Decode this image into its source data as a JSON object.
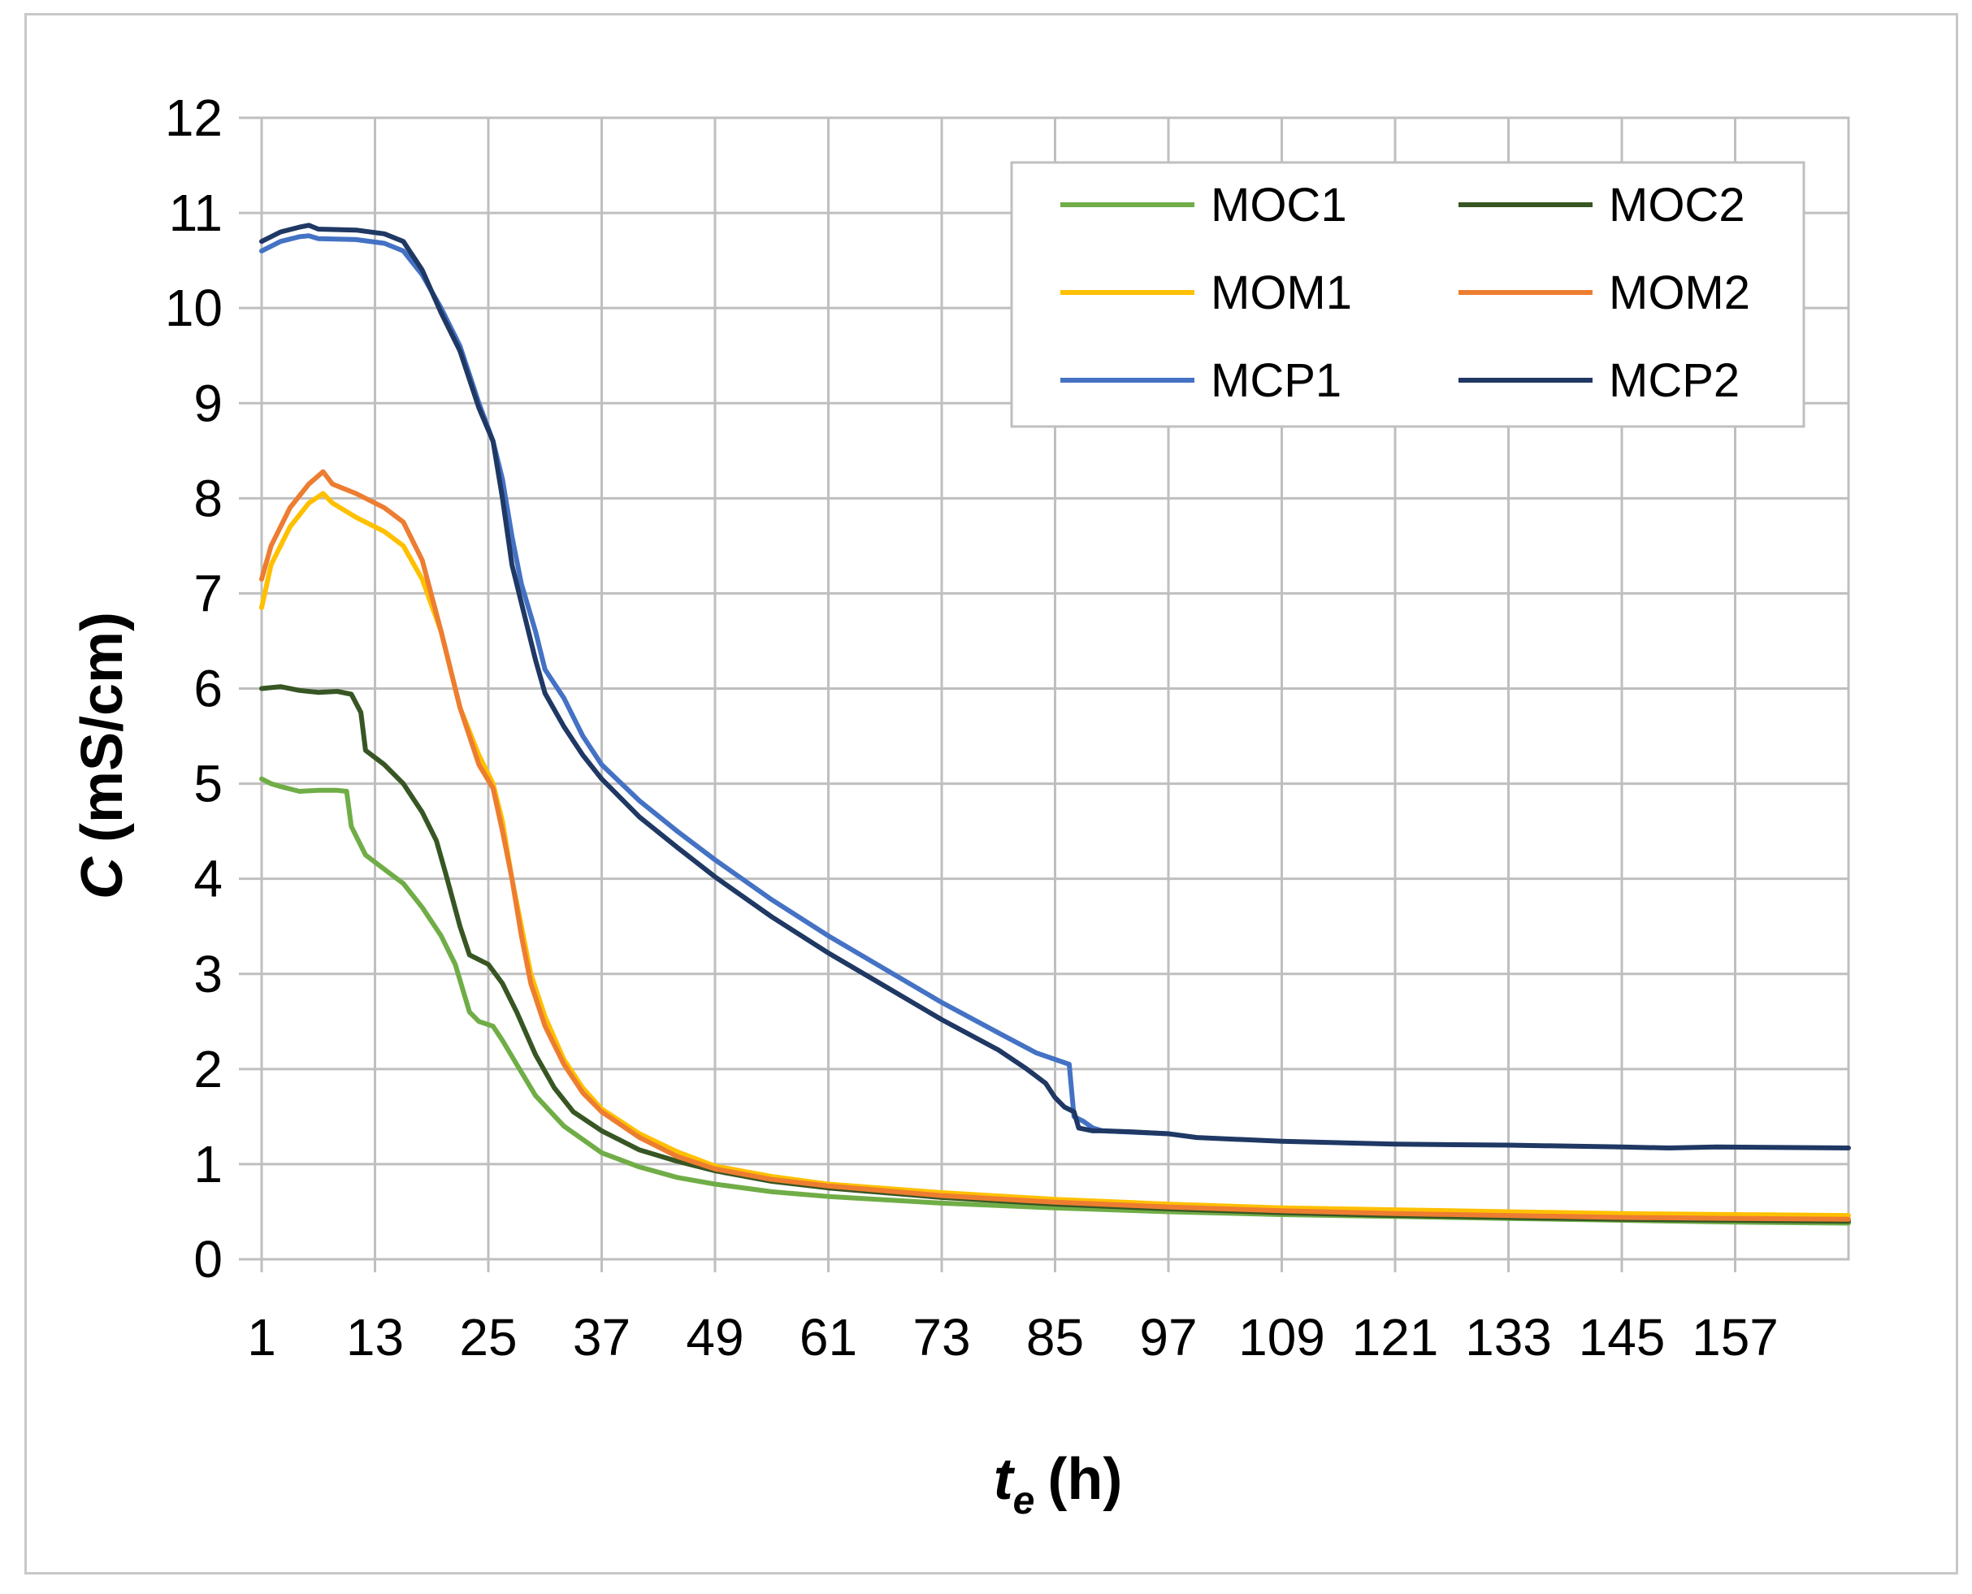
{
  "chart_data": {
    "type": "line",
    "title": "",
    "xlabel_main": "t",
    "xlabel_sub": "e",
    "xlabel_unit": "(h)",
    "ylabel_main": "C",
    "ylabel_unit": "(mS/cm)",
    "xlim": [
      1,
      169
    ],
    "ylim": [
      0,
      12
    ],
    "x_ticks": [
      1,
      13,
      25,
      37,
      49,
      61,
      73,
      85,
      97,
      109,
      121,
      133,
      145,
      157
    ],
    "y_ticks": [
      0,
      1,
      2,
      3,
      4,
      5,
      6,
      7,
      8,
      9,
      10,
      11,
      12
    ],
    "grid": true,
    "legend_position": "top-right",
    "series": [
      {
        "name": "MOC1",
        "color": "#70ad47",
        "points": [
          [
            1,
            5.05
          ],
          [
            2,
            5.0
          ],
          [
            3,
            4.97
          ],
          [
            5,
            4.92
          ],
          [
            7,
            4.93
          ],
          [
            9,
            4.93
          ],
          [
            10,
            4.92
          ],
          [
            10.5,
            4.55
          ],
          [
            12,
            4.25
          ],
          [
            14,
            4.1
          ],
          [
            16,
            3.95
          ],
          [
            18,
            3.7
          ],
          [
            20,
            3.4
          ],
          [
            21.5,
            3.1
          ],
          [
            23,
            2.6
          ],
          [
            24,
            2.5
          ],
          [
            25.5,
            2.45
          ],
          [
            26.5,
            2.3
          ],
          [
            28,
            2.05
          ],
          [
            30,
            1.72
          ],
          [
            33,
            1.4
          ],
          [
            37,
            1.12
          ],
          [
            41,
            0.97
          ],
          [
            45,
            0.86
          ],
          [
            49,
            0.79
          ],
          [
            55,
            0.71
          ],
          [
            61,
            0.66
          ],
          [
            73,
            0.59
          ],
          [
            85,
            0.54
          ],
          [
            97,
            0.5
          ],
          [
            109,
            0.47
          ],
          [
            121,
            0.45
          ],
          [
            133,
            0.43
          ],
          [
            145,
            0.41
          ],
          [
            157,
            0.39
          ],
          [
            169,
            0.38
          ]
        ]
      },
      {
        "name": "MOC2",
        "color": "#375623",
        "points": [
          [
            1,
            6.0
          ],
          [
            3,
            6.02
          ],
          [
            5,
            5.98
          ],
          [
            7,
            5.96
          ],
          [
            9,
            5.97
          ],
          [
            10.5,
            5.94
          ],
          [
            11.5,
            5.75
          ],
          [
            12,
            5.35
          ],
          [
            14,
            5.2
          ],
          [
            16,
            5.0
          ],
          [
            18,
            4.7
          ],
          [
            19.5,
            4.4
          ],
          [
            20.5,
            4.05
          ],
          [
            22,
            3.5
          ],
          [
            23,
            3.2
          ],
          [
            24,
            3.15
          ],
          [
            25,
            3.1
          ],
          [
            26.5,
            2.9
          ],
          [
            28,
            2.6
          ],
          [
            30,
            2.15
          ],
          [
            32,
            1.8
          ],
          [
            34,
            1.55
          ],
          [
            37,
            1.35
          ],
          [
            41,
            1.15
          ],
          [
            45,
            1.03
          ],
          [
            49,
            0.93
          ],
          [
            55,
            0.82
          ],
          [
            61,
            0.75
          ],
          [
            73,
            0.65
          ],
          [
            85,
            0.58
          ],
          [
            97,
            0.53
          ],
          [
            109,
            0.49
          ],
          [
            121,
            0.46
          ],
          [
            133,
            0.44
          ],
          [
            145,
            0.42
          ],
          [
            157,
            0.41
          ],
          [
            169,
            0.4
          ]
        ]
      },
      {
        "name": "MOM1",
        "color": "#ffc000",
        "points": [
          [
            1,
            6.85
          ],
          [
            2,
            7.3
          ],
          [
            4,
            7.7
          ],
          [
            6,
            7.95
          ],
          [
            7.5,
            8.05
          ],
          [
            8.5,
            7.95
          ],
          [
            11,
            7.8
          ],
          [
            14,
            7.65
          ],
          [
            16,
            7.5
          ],
          [
            18,
            7.15
          ],
          [
            20,
            6.6
          ],
          [
            22,
            5.8
          ],
          [
            24,
            5.3
          ],
          [
            25.5,
            5.0
          ],
          [
            26.5,
            4.6
          ],
          [
            27.5,
            4.0
          ],
          [
            28.5,
            3.5
          ],
          [
            29.5,
            3.0
          ],
          [
            31,
            2.55
          ],
          [
            33,
            2.1
          ],
          [
            35,
            1.8
          ],
          [
            37,
            1.58
          ],
          [
            41,
            1.32
          ],
          [
            45,
            1.13
          ],
          [
            49,
            0.98
          ],
          [
            55,
            0.87
          ],
          [
            61,
            0.79
          ],
          [
            73,
            0.7
          ],
          [
            85,
            0.63
          ],
          [
            97,
            0.58
          ],
          [
            109,
            0.54
          ],
          [
            121,
            0.52
          ],
          [
            133,
            0.5
          ],
          [
            145,
            0.48
          ],
          [
            157,
            0.47
          ],
          [
            169,
            0.46
          ]
        ]
      },
      {
        "name": "MOM2",
        "color": "#ed7d31",
        "points": [
          [
            1,
            7.15
          ],
          [
            2,
            7.5
          ],
          [
            4,
            7.9
          ],
          [
            6,
            8.15
          ],
          [
            7.5,
            8.28
          ],
          [
            8.5,
            8.15
          ],
          [
            11,
            8.05
          ],
          [
            14,
            7.9
          ],
          [
            16,
            7.75
          ],
          [
            18,
            7.35
          ],
          [
            20,
            6.6
          ],
          [
            22,
            5.8
          ],
          [
            24,
            5.2
          ],
          [
            25.5,
            4.95
          ],
          [
            26.5,
            4.5
          ],
          [
            27.5,
            4.0
          ],
          [
            28.5,
            3.4
          ],
          [
            29.5,
            2.9
          ],
          [
            31,
            2.45
          ],
          [
            33,
            2.05
          ],
          [
            35,
            1.75
          ],
          [
            37,
            1.55
          ],
          [
            41,
            1.28
          ],
          [
            45,
            1.08
          ],
          [
            49,
            0.95
          ],
          [
            55,
            0.84
          ],
          [
            61,
            0.77
          ],
          [
            73,
            0.67
          ],
          [
            85,
            0.6
          ],
          [
            97,
            0.55
          ],
          [
            109,
            0.51
          ],
          [
            121,
            0.48
          ],
          [
            133,
            0.46
          ],
          [
            145,
            0.44
          ],
          [
            157,
            0.43
          ],
          [
            169,
            0.42
          ]
        ]
      },
      {
        "name": "MCP1",
        "color": "#4472c4",
        "points": [
          [
            1,
            10.6
          ],
          [
            3,
            10.7
          ],
          [
            5,
            10.75
          ],
          [
            6,
            10.76
          ],
          [
            7,
            10.73
          ],
          [
            11,
            10.72
          ],
          [
            14,
            10.68
          ],
          [
            16,
            10.6
          ],
          [
            18,
            10.35
          ],
          [
            20,
            10.0
          ],
          [
            22,
            9.6
          ],
          [
            24,
            9.0
          ],
          [
            25.5,
            8.6
          ],
          [
            26.5,
            8.2
          ],
          [
            27.5,
            7.6
          ],
          [
            28.5,
            7.1
          ],
          [
            30,
            6.6
          ],
          [
            31,
            6.2
          ],
          [
            33,
            5.9
          ],
          [
            35,
            5.5
          ],
          [
            37,
            5.2
          ],
          [
            41,
            4.82
          ],
          [
            45,
            4.5
          ],
          [
            49,
            4.2
          ],
          [
            55,
            3.78
          ],
          [
            61,
            3.4
          ],
          [
            67,
            3.05
          ],
          [
            73,
            2.7
          ],
          [
            79,
            2.38
          ],
          [
            83,
            2.17
          ],
          [
            86.5,
            2.05
          ],
          [
            87,
            1.5
          ],
          [
            88,
            1.45
          ],
          [
            89,
            1.38
          ],
          [
            90,
            1.35
          ],
          [
            97,
            1.32
          ]
        ]
      },
      {
        "name": "MCP2",
        "color": "#1f3864",
        "points": [
          [
            1,
            10.7
          ],
          [
            3,
            10.8
          ],
          [
            5,
            10.85
          ],
          [
            6,
            10.87
          ],
          [
            7,
            10.83
          ],
          [
            11,
            10.82
          ],
          [
            14,
            10.78
          ],
          [
            16,
            10.7
          ],
          [
            18,
            10.4
          ],
          [
            20,
            9.95
          ],
          [
            22,
            9.55
          ],
          [
            24,
            8.95
          ],
          [
            25.5,
            8.6
          ],
          [
            26.5,
            8.0
          ],
          [
            27.5,
            7.3
          ],
          [
            28.5,
            6.9
          ],
          [
            30,
            6.3
          ],
          [
            31,
            5.95
          ],
          [
            33,
            5.6
          ],
          [
            35,
            5.3
          ],
          [
            37,
            5.05
          ],
          [
            41,
            4.65
          ],
          [
            45,
            4.33
          ],
          [
            49,
            4.02
          ],
          [
            55,
            3.6
          ],
          [
            61,
            3.22
          ],
          [
            67,
            2.87
          ],
          [
            73,
            2.52
          ],
          [
            79,
            2.2
          ],
          [
            82,
            2.0
          ],
          [
            84,
            1.85
          ],
          [
            85,
            1.7
          ],
          [
            86,
            1.6
          ],
          [
            87,
            1.55
          ],
          [
            87.5,
            1.38
          ],
          [
            89,
            1.35
          ],
          [
            90,
            1.35
          ],
          [
            93,
            1.34
          ],
          [
            97,
            1.32
          ],
          [
            100,
            1.28
          ],
          [
            109,
            1.24
          ],
          [
            121,
            1.21
          ],
          [
            133,
            1.2
          ],
          [
            145,
            1.18
          ],
          [
            150,
            1.17
          ],
          [
            155,
            1.18
          ],
          [
            169,
            1.17
          ]
        ]
      }
    ]
  }
}
